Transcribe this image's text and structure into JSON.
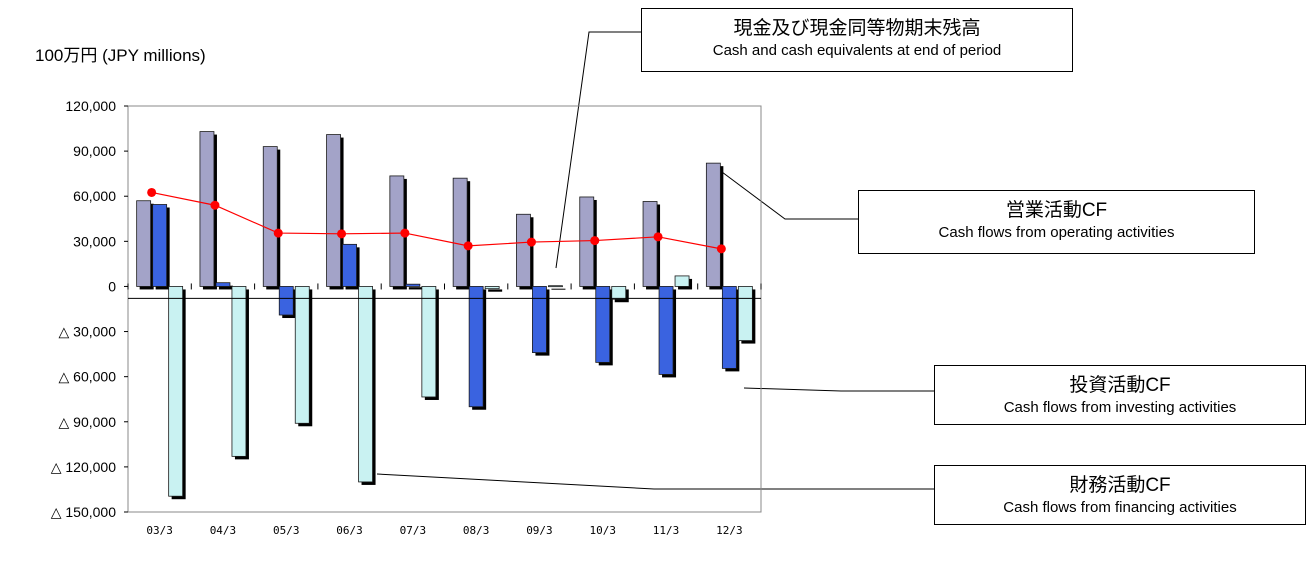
{
  "unit_label": "100万円 (JPY millions)",
  "callouts": {
    "cash": {
      "jp": "現金及び現金同等物期末残高",
      "en": "Cash and cash equivalents at end of period"
    },
    "operating": {
      "jp": "営業活動CF",
      "en": "Cash flows from operating activities"
    },
    "investing": {
      "jp": "投資活動CF",
      "en": "Cash flows from investing activities"
    },
    "financing": {
      "jp": "財務活動CF",
      "en": "Cash flows from financing activities"
    }
  },
  "colors": {
    "operating": "#a3a3c8",
    "investing": "#3a63e0",
    "financing": "#c9f2f2",
    "cash_line": "#ff0000",
    "shadow": "#000000"
  },
  "chart_data": {
    "type": "bar",
    "categories": [
      "03/3",
      "04/3",
      "05/3",
      "06/3",
      "07/3",
      "08/3",
      "09/3",
      "10/3",
      "11/3",
      "12/3"
    ],
    "ylim": [
      -150000,
      120000
    ],
    "yticks": [
      {
        "value": 120000,
        "label": "120,000"
      },
      {
        "value": 90000,
        "label": "90,000"
      },
      {
        "value": 60000,
        "label": "60,000"
      },
      {
        "value": 30000,
        "label": "30,000"
      },
      {
        "value": 0,
        "label": "0"
      },
      {
        "value": -30000,
        "label": "△ 30,000"
      },
      {
        "value": -60000,
        "label": "△ 60,000"
      },
      {
        "value": -90000,
        "label": "△ 90,000"
      },
      {
        "value": -120000,
        "label": "△ 120,000"
      },
      {
        "value": -150000,
        "label": "△ 150,000"
      }
    ],
    "series": [
      {
        "name": "営業活動CF",
        "kind": "bar",
        "color_key": "operating",
        "values": [
          57000,
          103000,
          93000,
          101000,
          73500,
          72000,
          48000,
          59500,
          56500,
          82000
        ]
      },
      {
        "name": "投資活動CF",
        "kind": "bar",
        "color_key": "investing",
        "values": [
          54500,
          2500,
          -19000,
          28000,
          1500,
          -80000,
          -44000,
          -50500,
          -58500,
          -54500
        ]
      },
      {
        "name": "財務活動CF",
        "kind": "bar",
        "color_key": "financing",
        "values": [
          -139500,
          -113000,
          -91000,
          -130000,
          -73500,
          -1500,
          500,
          -8500,
          7000,
          -36000
        ]
      },
      {
        "name": "現金及び現金同等物期末残高",
        "kind": "line",
        "color_key": "cash_line",
        "values": [
          62500,
          54000,
          35500,
          35000,
          35500,
          27000,
          29500,
          30500,
          33000,
          25000
        ]
      }
    ],
    "grid": false,
    "legend": "callouts"
  }
}
